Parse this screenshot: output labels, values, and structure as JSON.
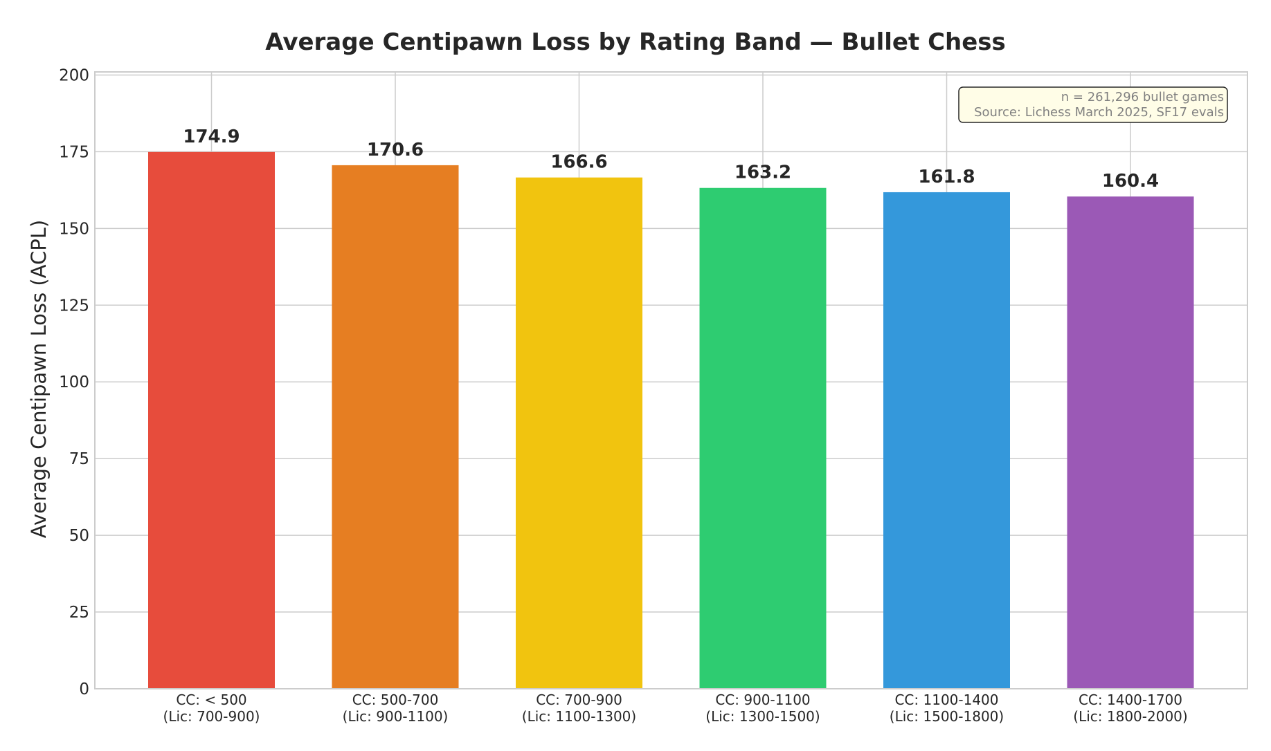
{
  "chart_data": {
    "type": "bar",
    "title": "Average Centipawn Loss by Rating Band — Bullet Chess",
    "xlabel": "",
    "ylabel": "Average Centipawn Loss (ACPL)",
    "ylim": [
      0,
      201
    ],
    "yticks": [
      0,
      25,
      50,
      75,
      100,
      125,
      150,
      175,
      200
    ],
    "grid": true,
    "categories": [
      [
        "CC: < 500",
        "(Lic: 700-900)"
      ],
      [
        "CC: 500-700",
        "(Lic: 900-1100)"
      ],
      [
        "CC: 700-900",
        "(Lic: 1100-1300)"
      ],
      [
        "CC: 900-1100",
        "(Lic: 1300-1500)"
      ],
      [
        "CC: 1100-1400",
        "(Lic: 1500-1800)"
      ],
      [
        "CC: 1400-1700",
        "(Lic: 1800-2000)"
      ]
    ],
    "values": [
      174.9,
      170.6,
      166.6,
      163.2,
      161.8,
      160.4
    ],
    "value_labels": [
      "174.9",
      "170.6",
      "166.6",
      "163.2",
      "161.8",
      "160.4"
    ],
    "colors": [
      "#e74c3c",
      "#e67e22",
      "#f1c40f",
      "#2ecc71",
      "#3498db",
      "#9b59b6"
    ],
    "annotation": {
      "lines": [
        "n = 261,296 bullet games",
        "Source: Lichess March 2025, SF17 evals"
      ],
      "placement": "top-right",
      "background": "#fffde7"
    }
  }
}
